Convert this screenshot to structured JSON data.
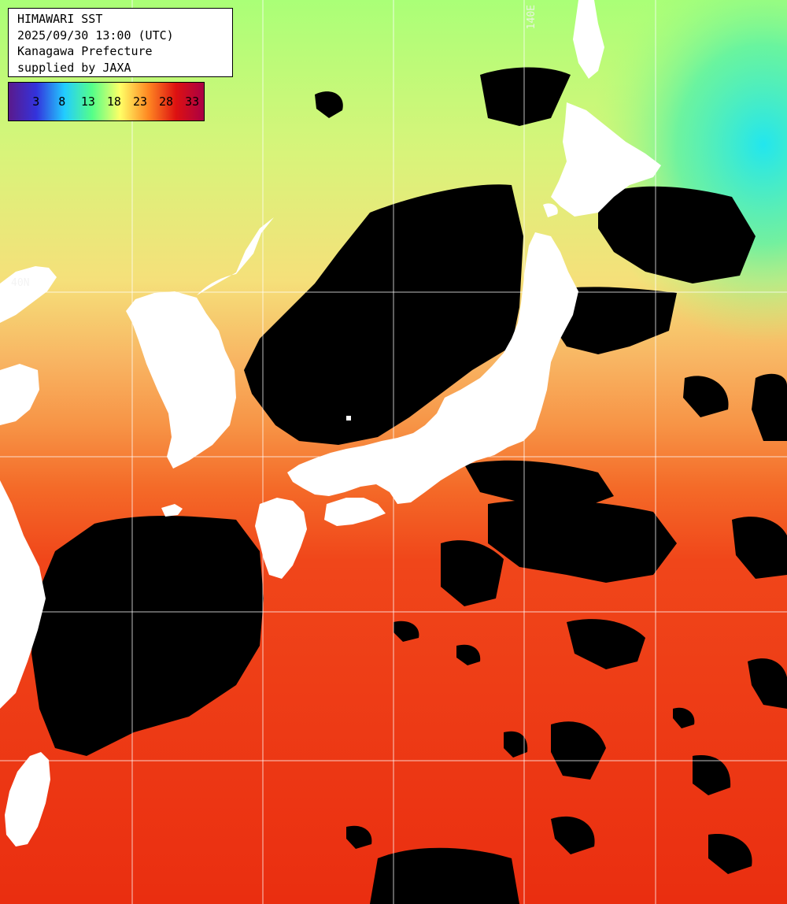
{
  "info": {
    "product": "HIMAWARI SST",
    "datetime": "2025/09/30 13:00 (UTC)",
    "region": "Kanagawa Prefecture",
    "credit": "supplied by JAXA"
  },
  "legend": {
    "ticks": [
      "3",
      "8",
      "13",
      "18",
      "23",
      "28",
      "33"
    ],
    "colors": [
      "#5a1a8c",
      "#3333dd",
      "#22ccff",
      "#55ff88",
      "#ffff66",
      "#ff8822",
      "#dd1111",
      "#aa0044"
    ]
  },
  "grid_labels": {
    "lon": "140E",
    "lat": "40N"
  },
  "colors": {
    "land": "#ffffff",
    "cloud": "#000000",
    "grid": "#ffffff"
  }
}
